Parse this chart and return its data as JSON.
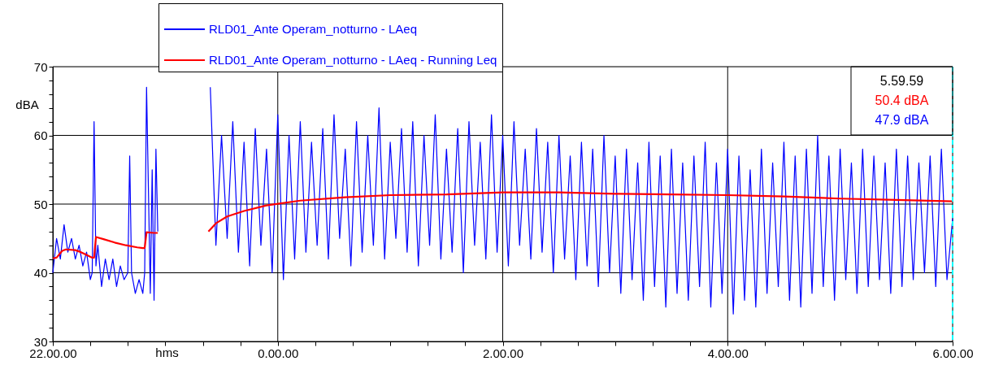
{
  "chart_data": {
    "type": "line",
    "xlabel": "hms",
    "ylabel": "dBA",
    "xlim": [
      "2000-01-01T22:00",
      "2000-01-02T06:00"
    ],
    "ylim": [
      30,
      70
    ],
    "xticks": [
      {
        "value": "2000-01-01T22:00",
        "label": "22.00.00"
      },
      {
        "value": "2000-01-01T22:20",
        "label": null
      },
      {
        "value": "2000-01-01T22:40",
        "label": null
      },
      {
        "value": "2000-01-01T23:00",
        "label": null
      },
      {
        "value": "2000-01-01T23:20",
        "label": null
      },
      {
        "value": "2000-01-01T23:40",
        "label": null
      },
      {
        "value": "2000-01-02T00:00",
        "label": "0.00.00"
      },
      {
        "value": "2000-01-02T00:20",
        "label": null
      },
      {
        "value": "2000-01-02T00:40",
        "label": null
      },
      {
        "value": "2000-01-02T01:00",
        "label": null
      },
      {
        "value": "2000-01-02T01:20",
        "label": null
      },
      {
        "value": "2000-01-02T01:40",
        "label": null
      },
      {
        "value": "2000-01-02T02:00",
        "label": "2.00.00"
      },
      {
        "value": "2000-01-02T02:20",
        "label": null
      },
      {
        "value": "2000-01-02T02:40",
        "label": null
      },
      {
        "value": "2000-01-02T03:00",
        "label": null
      },
      {
        "value": "2000-01-02T03:20",
        "label": null
      },
      {
        "value": "2000-01-02T03:40",
        "label": null
      },
      {
        "value": "2000-01-02T04:00",
        "label": "4.00.00"
      },
      {
        "value": "2000-01-02T04:20",
        "label": null
      },
      {
        "value": "2000-01-02T04:40",
        "label": null
      },
      {
        "value": "2000-01-02T05:00",
        "label": null
      },
      {
        "value": "2000-01-02T05:20",
        "label": null
      },
      {
        "value": "2000-01-02T05:40",
        "label": null
      },
      {
        "value": "2000-01-02T06:00",
        "label": "6.00.00"
      }
    ],
    "yticks": [
      30,
      {
        "value": 32,
        "label": null
      },
      {
        "value": 34,
        "label": null
      },
      {
        "value": 36,
        "label": null
      },
      {
        "value": 38,
        "label": null
      },
      40,
      {
        "value": 42,
        "label": null
      },
      {
        "value": 44,
        "label": null
      },
      {
        "value": 46,
        "label": null
      },
      {
        "value": 48,
        "label": null
      },
      50,
      {
        "value": 52,
        "label": null
      },
      {
        "value": 54,
        "label": null
      },
      {
        "value": 56,
        "label": null
      },
      {
        "value": 58,
        "label": null
      },
      60,
      {
        "value": 62,
        "label": null
      },
      {
        "value": 64,
        "label": null
      },
      {
        "value": 66,
        "label": null
      },
      {
        "value": 68,
        "label": null
      },
      70
    ],
    "grid": true,
    "legend": "top",
    "marker": "none",
    "line_style": "solid",
    "annotations": [
      "5.59.59",
      "50.4 dBA",
      "47.9 dBA"
    ],
    "ref_lines": [
      {
        "axis": "x",
        "value": "2000-01-02T06:00",
        "color": "#00ffff",
        "line_style": "dashed"
      }
    ],
    "series": [
      {
        "name": "RLD01_Ante Operam_notturno - LAeq",
        "color": "#0000ff",
        "x": [
          "2000-01-01T22:00",
          "2000-01-01T22:02",
          "2000-01-01T22:04",
          "2000-01-01T22:06",
          "2000-01-01T22:08",
          "2000-01-01T22:10",
          "2000-01-01T22:12",
          "2000-01-01T22:14",
          "2000-01-01T22:16",
          "2000-01-01T22:18",
          "2000-01-01T22:20",
          "2000-01-01T22:21",
          "2000-01-01T22:22",
          "2000-01-01T22:23",
          "2000-01-01T22:24",
          "2000-01-01T22:26",
          "2000-01-01T22:28",
          "2000-01-01T22:30",
          "2000-01-01T22:32",
          "2000-01-01T22:34",
          "2000-01-01T22:36",
          "2000-01-01T22:38",
          "2000-01-01T22:40",
          "2000-01-01T22:41",
          "2000-01-01T22:42",
          "2000-01-01T22:44",
          "2000-01-01T22:46",
          "2000-01-01T22:48",
          "2000-01-01T22:49",
          "2000-01-01T22:50",
          "2000-01-01T22:52",
          "2000-01-01T22:53",
          "2000-01-01T22:54",
          "2000-01-01T22:55",
          "2000-01-01T22:56",
          "2000-01-01T23:06",
          "2000-01-01T23:24",
          "2000-01-01T23:27",
          "2000-01-01T23:30",
          "2000-01-01T23:33",
          "2000-01-01T23:36",
          "2000-01-01T23:39",
          "2000-01-01T23:42",
          "2000-01-01T23:45",
          "2000-01-01T23:48",
          "2000-01-01T23:51",
          "2000-01-01T23:54",
          "2000-01-01T23:57",
          "2000-01-02T00:00",
          "2000-01-02T00:03",
          "2000-01-02T00:06",
          "2000-01-02T00:09",
          "2000-01-02T00:12",
          "2000-01-02T00:15",
          "2000-01-02T00:18",
          "2000-01-02T00:21",
          "2000-01-02T00:24",
          "2000-01-02T00:27",
          "2000-01-02T00:30",
          "2000-01-02T00:33",
          "2000-01-02T00:36",
          "2000-01-02T00:39",
          "2000-01-02T00:42",
          "2000-01-02T00:45",
          "2000-01-02T00:48",
          "2000-01-02T00:51",
          "2000-01-02T00:54",
          "2000-01-02T00:57",
          "2000-01-02T01:00",
          "2000-01-02T01:03",
          "2000-01-02T01:06",
          "2000-01-02T01:09",
          "2000-01-02T01:12",
          "2000-01-02T01:15",
          "2000-01-02T01:18",
          "2000-01-02T01:21",
          "2000-01-02T01:24",
          "2000-01-02T01:27",
          "2000-01-02T01:30",
          "2000-01-02T01:33",
          "2000-01-02T01:36",
          "2000-01-02T01:39",
          "2000-01-02T01:42",
          "2000-01-02T01:45",
          "2000-01-02T01:48",
          "2000-01-02T01:51",
          "2000-01-02T01:54",
          "2000-01-02T01:57",
          "2000-01-02T02:00",
          "2000-01-02T02:03",
          "2000-01-02T02:06",
          "2000-01-02T02:09",
          "2000-01-02T02:12",
          "2000-01-02T02:15",
          "2000-01-02T02:18",
          "2000-01-02T02:21",
          "2000-01-02T02:24",
          "2000-01-02T02:27",
          "2000-01-02T02:30",
          "2000-01-02T02:33",
          "2000-01-02T02:36",
          "2000-01-02T02:39",
          "2000-01-02T02:42",
          "2000-01-02T02:45",
          "2000-01-02T02:48",
          "2000-01-02T02:51",
          "2000-01-02T02:54",
          "2000-01-02T02:57",
          "2000-01-02T03:00",
          "2000-01-02T03:03",
          "2000-01-02T03:06",
          "2000-01-02T03:09",
          "2000-01-02T03:12",
          "2000-01-02T03:15",
          "2000-01-02T03:18",
          "2000-01-02T03:21",
          "2000-01-02T03:24",
          "2000-01-02T03:27",
          "2000-01-02T03:30",
          "2000-01-02T03:33",
          "2000-01-02T03:36",
          "2000-01-02T03:39",
          "2000-01-02T03:42",
          "2000-01-02T03:45",
          "2000-01-02T03:48",
          "2000-01-02T03:51",
          "2000-01-02T03:54",
          "2000-01-02T03:57",
          "2000-01-02T04:00",
          "2000-01-02T04:03",
          "2000-01-02T04:06",
          "2000-01-02T04:09",
          "2000-01-02T04:12",
          "2000-01-02T04:15",
          "2000-01-02T04:18",
          "2000-01-02T04:21",
          "2000-01-02T04:24",
          "2000-01-02T04:27",
          "2000-01-02T04:30",
          "2000-01-02T04:33",
          "2000-01-02T04:36",
          "2000-01-02T04:39",
          "2000-01-02T04:42",
          "2000-01-02T04:45",
          "2000-01-02T04:48",
          "2000-01-02T04:51",
          "2000-01-02T04:54",
          "2000-01-02T04:57",
          "2000-01-02T05:00",
          "2000-01-02T05:03",
          "2000-01-02T05:06",
          "2000-01-02T05:09",
          "2000-01-02T05:12",
          "2000-01-02T05:15",
          "2000-01-02T05:18",
          "2000-01-02T05:21",
          "2000-01-02T05:24",
          "2000-01-02T05:27",
          "2000-01-02T05:30",
          "2000-01-02T05:33",
          "2000-01-02T05:36",
          "2000-01-02T05:39",
          "2000-01-02T05:42",
          "2000-01-02T05:45",
          "2000-01-02T05:48",
          "2000-01-02T05:51",
          "2000-01-02T05:54",
          "2000-01-02T05:57",
          "2000-01-02T06:00"
        ],
        "values": [
          40,
          45,
          42,
          47,
          43,
          45,
          42,
          44,
          41,
          43,
          39,
          40,
          62,
          41,
          44,
          38,
          42,
          39,
          42,
          38,
          41,
          39,
          40,
          57,
          40,
          37,
          39,
          37,
          40,
          67,
          37,
          55,
          36,
          58,
          46,
          null,
          67,
          44,
          60,
          45,
          62,
          43,
          59,
          41,
          61,
          44,
          58,
          40,
          63,
          39,
          60,
          42,
          62,
          43,
          59,
          44,
          61,
          42,
          63,
          45,
          58,
          41,
          62,
          43,
          60,
          44,
          64,
          42,
          59,
          45,
          61,
          43,
          62,
          41,
          60,
          44,
          63,
          42,
          58,
          43,
          61,
          40,
          62,
          44,
          59,
          42,
          63,
          43,
          60,
          41,
          62,
          44,
          58,
          42,
          61,
          43,
          59,
          40,
          60,
          42,
          57,
          39,
          59,
          41,
          58,
          38,
          60,
          40,
          57,
          37,
          58,
          39,
          56,
          36,
          59,
          38,
          57,
          35,
          58,
          37,
          56,
          36,
          57,
          38,
          59,
          35,
          56,
          37,
          58,
          34,
          57,
          36,
          55,
          35,
          58,
          37,
          56,
          38,
          59,
          36,
          57,
          35,
          58,
          37,
          60,
          38,
          57,
          36,
          58,
          39,
          56,
          37,
          58,
          38,
          57,
          39,
          56,
          37,
          58,
          38,
          57,
          39,
          56,
          40,
          57,
          38,
          58,
          39,
          47.9
        ]
      },
      {
        "name": "RLD01_Ante Operam_notturno - LAeq - Running Leq",
        "color": "#ff0000",
        "x": [
          "2000-01-01T22:00",
          "2000-01-01T22:02",
          "2000-01-01T22:05",
          "2000-01-01T22:07",
          "2000-01-01T22:12",
          "2000-01-01T22:15",
          "2000-01-01T22:18",
          "2000-01-01T22:21",
          "2000-01-01T22:22",
          "2000-01-01T22:23",
          "2000-01-01T22:27",
          "2000-01-01T22:33",
          "2000-01-01T22:39",
          "2000-01-01T22:45",
          "2000-01-01T22:48",
          "2000-01-01T22:49",
          "2000-01-01T22:50",
          "2000-01-01T22:54",
          "2000-01-01T22:56",
          "2000-01-01T23:06",
          "2000-01-01T23:23",
          "2000-01-01T23:27",
          "2000-01-01T23:33",
          "2000-01-01T23:42",
          "2000-01-01T23:54",
          "2000-01-02T00:12",
          "2000-01-02T00:36",
          "2000-01-02T01:00",
          "2000-01-02T01:30",
          "2000-01-02T02:00",
          "2000-01-02T02:30",
          "2000-01-02T03:00",
          "2000-01-02T03:30",
          "2000-01-02T04:00",
          "2000-01-02T04:30",
          "2000-01-02T05:00",
          "2000-01-02T05:30",
          "2000-01-02T06:00"
        ],
        "values": [
          42.1,
          42.2,
          43.2,
          43.4,
          43.3,
          43.0,
          42.6,
          42.2,
          42.2,
          45.2,
          44.9,
          44.4,
          44.0,
          43.7,
          43.6,
          43.6,
          45.9,
          45.8,
          45.8,
          null,
          46.0,
          47.2,
          48.2,
          49.0,
          49.8,
          50.5,
          51.0,
          51.3,
          51.4,
          51.7,
          51.7,
          51.5,
          51.4,
          51.3,
          51.1,
          50.8,
          50.6,
          50.4
        ]
      }
    ]
  }
}
